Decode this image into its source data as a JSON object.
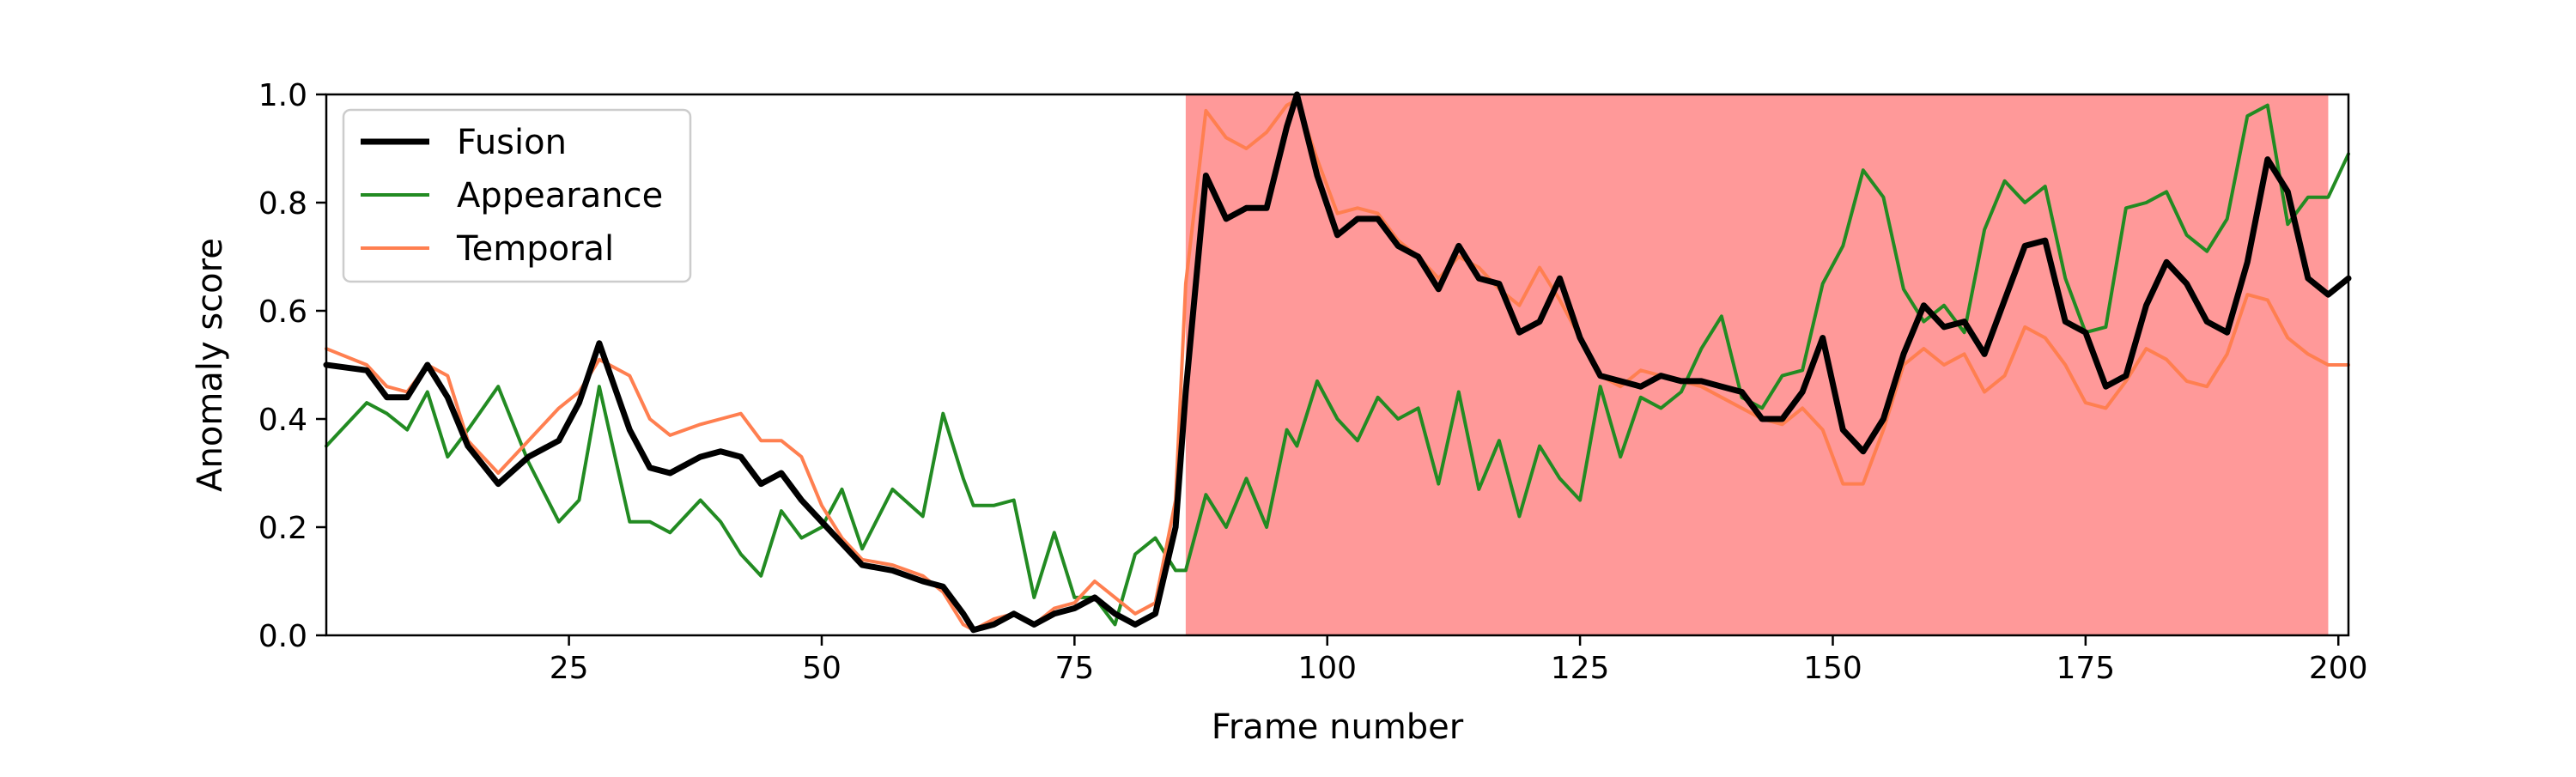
{
  "chart_data": {
    "type": "line",
    "xlabel": "Frame number",
    "ylabel": "Anomaly score",
    "xlim": [
      1,
      201
    ],
    "ylim": [
      0,
      1
    ],
    "xticks": [
      25,
      50,
      75,
      100,
      125,
      150,
      175,
      200
    ],
    "yticks": [
      0.0,
      0.2,
      0.4,
      0.6,
      0.8,
      1.0
    ],
    "ytick_labels": [
      "0.0",
      "0.2",
      "0.4",
      "0.6",
      "0.8",
      "1.0"
    ],
    "grid": false,
    "legend_position": "top-left",
    "highlight_region": {
      "x_start": 86,
      "x_end": 199,
      "color": "#ff9999"
    },
    "x": [
      1,
      5,
      7,
      9,
      11,
      13,
      15,
      18,
      21,
      24,
      26,
      28,
      31,
      33,
      35,
      38,
      40,
      42,
      44,
      46,
      48,
      50,
      52,
      54,
      57,
      60,
      62,
      64,
      65,
      67,
      69,
      71,
      73,
      75,
      77,
      79,
      81,
      83,
      85,
      86,
      88,
      90,
      92,
      94,
      96,
      97,
      99,
      101,
      103,
      105,
      107,
      109,
      111,
      113,
      115,
      117,
      119,
      121,
      123,
      125,
      127,
      129,
      131,
      133,
      135,
      137,
      139,
      141,
      143,
      145,
      147,
      149,
      151,
      153,
      155,
      157,
      159,
      161,
      163,
      165,
      167,
      169,
      171,
      173,
      175,
      177,
      179,
      181,
      183,
      185,
      187,
      189,
      191,
      193,
      195,
      197,
      199,
      201
    ],
    "series": [
      {
        "name": "Fusion",
        "color": "#000000",
        "values": [
          0.5,
          0.49,
          0.44,
          0.44,
          0.5,
          0.44,
          0.35,
          0.28,
          0.33,
          0.36,
          0.43,
          0.54,
          0.38,
          0.31,
          0.3,
          0.33,
          0.34,
          0.33,
          0.28,
          0.3,
          0.25,
          0.21,
          0.17,
          0.13,
          0.12,
          0.1,
          0.09,
          0.04,
          0.01,
          0.02,
          0.04,
          0.02,
          0.04,
          0.05,
          0.07,
          0.04,
          0.02,
          0.04,
          0.2,
          0.45,
          0.85,
          0.77,
          0.79,
          0.79,
          0.94,
          1.0,
          0.85,
          0.74,
          0.77,
          0.77,
          0.72,
          0.7,
          0.64,
          0.72,
          0.66,
          0.65,
          0.56,
          0.58,
          0.66,
          0.55,
          0.48,
          0.47,
          0.46,
          0.48,
          0.47,
          0.47,
          0.46,
          0.45,
          0.4,
          0.4,
          0.45,
          0.55,
          0.38,
          0.34,
          0.4,
          0.52,
          0.61,
          0.57,
          0.58,
          0.52,
          0.62,
          0.72,
          0.73,
          0.58,
          0.56,
          0.46,
          0.48,
          0.61,
          0.69,
          0.65,
          0.58,
          0.56,
          0.69,
          0.88,
          0.82,
          0.66,
          0.63,
          0.66
        ]
      },
      {
        "name": "Appearance",
        "color": "#228b22",
        "values": [
          0.35,
          0.43,
          0.41,
          0.38,
          0.45,
          0.33,
          0.38,
          0.46,
          0.32,
          0.21,
          0.25,
          0.46,
          0.21,
          0.21,
          0.19,
          0.25,
          0.21,
          0.15,
          0.11,
          0.23,
          0.18,
          0.2,
          0.27,
          0.16,
          0.27,
          0.22,
          0.41,
          0.29,
          0.24,
          0.24,
          0.25,
          0.07,
          0.19,
          0.07,
          0.07,
          0.02,
          0.15,
          0.18,
          0.12,
          0.12,
          0.26,
          0.2,
          0.29,
          0.2,
          0.38,
          0.35,
          0.47,
          0.4,
          0.36,
          0.44,
          0.4,
          0.42,
          0.28,
          0.45,
          0.27,
          0.36,
          0.22,
          0.35,
          0.29,
          0.25,
          0.46,
          0.33,
          0.44,
          0.42,
          0.45,
          0.53,
          0.59,
          0.44,
          0.42,
          0.48,
          0.49,
          0.65,
          0.72,
          0.86,
          0.81,
          0.64,
          0.58,
          0.61,
          0.56,
          0.75,
          0.84,
          0.8,
          0.83,
          0.66,
          0.56,
          0.57,
          0.79,
          0.8,
          0.82,
          0.74,
          0.71,
          0.77,
          0.96,
          0.98,
          0.76,
          0.81,
          0.81,
          0.89
        ]
      },
      {
        "name": "Temporal",
        "color": "#ff7f50",
        "values": [
          0.53,
          0.5,
          0.46,
          0.45,
          0.5,
          0.48,
          0.36,
          0.3,
          0.36,
          0.42,
          0.45,
          0.51,
          0.48,
          0.4,
          0.37,
          0.39,
          0.4,
          0.41,
          0.36,
          0.36,
          0.33,
          0.24,
          0.18,
          0.14,
          0.13,
          0.11,
          0.08,
          0.02,
          0.01,
          0.03,
          0.04,
          0.02,
          0.05,
          0.06,
          0.1,
          0.07,
          0.04,
          0.06,
          0.25,
          0.65,
          0.97,
          0.92,
          0.9,
          0.93,
          0.98,
          0.99,
          0.88,
          0.78,
          0.79,
          0.78,
          0.73,
          0.7,
          0.66,
          0.7,
          0.68,
          0.64,
          0.61,
          0.68,
          0.62,
          0.55,
          0.48,
          0.46,
          0.49,
          0.48,
          0.47,
          0.46,
          0.44,
          0.42,
          0.4,
          0.39,
          0.42,
          0.38,
          0.28,
          0.28,
          0.38,
          0.5,
          0.53,
          0.5,
          0.52,
          0.45,
          0.48,
          0.57,
          0.55,
          0.5,
          0.43,
          0.42,
          0.47,
          0.53,
          0.51,
          0.47,
          0.46,
          0.52,
          0.63,
          0.62,
          0.55,
          0.52,
          0.5,
          0.5
        ]
      }
    ]
  }
}
